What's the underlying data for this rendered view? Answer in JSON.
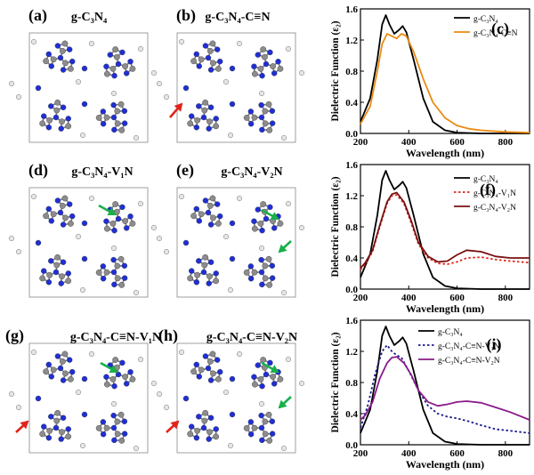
{
  "colors": {
    "carbon": "#8c8c8c",
    "nitrogen": "#1f2fd6",
    "hydrogen": "#e6e6e6",
    "bond": "#7a7a8a",
    "arrow_red": "#e0241c",
    "arrow_green": "#19b04a",
    "black": "#000000",
    "orange": "#ec8a12",
    "red_dot": "#e0241c",
    "dark_red": "#7a1010",
    "navy": "#1a1a8c",
    "purple": "#8a1a8a"
  },
  "panels": [
    {
      "tag": "(a)",
      "title": "g-C₃N₄"
    },
    {
      "tag": "(b)",
      "title": "g-C₃N₄-C≡N"
    },
    {
      "tag": "(d)",
      "title": "g-C₃N₄-V₁N"
    },
    {
      "tag": "(e)",
      "title": "g-C₃N₄-V₂N"
    },
    {
      "tag": "(g)",
      "title": "g-C₃N₄-C≡N-V₁N"
    },
    {
      "tag": "(h)",
      "title": "g-C₃N₄-C≡N-V₂N"
    }
  ],
  "chart_data": [
    {
      "type": "line",
      "panel_tag": "(c)",
      "xlabel": "Wavelength (nm)",
      "ylabel": "Dielectric Function (ε₂)",
      "xlim": [
        200,
        900
      ],
      "ylim": [
        0,
        1.6
      ],
      "xticks": [
        200,
        400,
        600,
        800
      ],
      "yticks": [
        0.0,
        0.4,
        0.8,
        1.2,
        1.6
      ],
      "legend_position": "top-right",
      "series": [
        {
          "name": "g-C₃N₄",
          "color": "#000000",
          "style": "solid",
          "x": [
            200,
            240,
            270,
            290,
            305,
            320,
            340,
            360,
            375,
            390,
            420,
            460,
            500,
            550,
            600,
            700,
            800,
            900
          ],
          "y": [
            0.15,
            0.45,
            0.95,
            1.4,
            1.52,
            1.4,
            1.28,
            1.33,
            1.38,
            1.3,
            0.95,
            0.45,
            0.15,
            0.04,
            0.01,
            0,
            0,
            0
          ]
        },
        {
          "name": "g-C₃N₄-C≡N",
          "color": "#ec8a12",
          "style": "solid",
          "x": [
            200,
            240,
            270,
            290,
            310,
            330,
            350,
            370,
            390,
            420,
            460,
            500,
            550,
            600,
            650,
            700,
            800,
            900
          ],
          "y": [
            0.12,
            0.35,
            0.8,
            1.15,
            1.28,
            1.25,
            1.22,
            1.28,
            1.25,
            1.05,
            0.7,
            0.4,
            0.2,
            0.1,
            0.06,
            0.04,
            0.02,
            0.01
          ]
        }
      ]
    },
    {
      "type": "line",
      "panel_tag": "(f)",
      "xlabel": "Wavelength (nm)",
      "ylabel": "Dielectric Function (ε₂)",
      "xlim": [
        200,
        900
      ],
      "ylim": [
        0,
        1.6
      ],
      "xticks": [
        200,
        400,
        600,
        800
      ],
      "yticks": [
        0.0,
        0.4,
        0.8,
        1.2,
        1.6
      ],
      "legend_position": "top-right",
      "series": [
        {
          "name": "g-C₃N₄",
          "color": "#000000",
          "style": "solid",
          "x": [
            200,
            240,
            270,
            290,
            305,
            320,
            340,
            360,
            375,
            390,
            420,
            460,
            500,
            550,
            600,
            700,
            800,
            900
          ],
          "y": [
            0.15,
            0.45,
            0.95,
            1.4,
            1.52,
            1.4,
            1.28,
            1.33,
            1.38,
            1.3,
            0.95,
            0.45,
            0.15,
            0.04,
            0.01,
            0,
            0,
            0
          ]
        },
        {
          "name": "g-C₃N₄-V₁N",
          "color": "#e0241c",
          "style": "dotted",
          "x": [
            200,
            220,
            250,
            280,
            310,
            330,
            350,
            380,
            410,
            440,
            480,
            520,
            560,
            600,
            640,
            700,
            760,
            820,
            900
          ],
          "y": [
            0.25,
            0.32,
            0.48,
            0.8,
            1.1,
            1.2,
            1.21,
            1.1,
            0.85,
            0.58,
            0.4,
            0.33,
            0.32,
            0.35,
            0.4,
            0.41,
            0.38,
            0.36,
            0.34
          ]
        },
        {
          "name": "g-C₃N₄-V₂N",
          "color": "#7a1010",
          "style": "solid",
          "x": [
            200,
            220,
            250,
            280,
            310,
            330,
            350,
            380,
            410,
            440,
            480,
            520,
            560,
            600,
            640,
            700,
            760,
            820,
            900
          ],
          "y": [
            0.27,
            0.34,
            0.5,
            0.82,
            1.12,
            1.22,
            1.24,
            1.12,
            0.88,
            0.6,
            0.42,
            0.35,
            0.36,
            0.44,
            0.5,
            0.48,
            0.42,
            0.4,
            0.4
          ]
        }
      ]
    },
    {
      "type": "line",
      "panel_tag": "(i)",
      "xlabel": "Wavelength (nm)",
      "ylabel": "Dielectric Function (ε₂)",
      "xlim": [
        200,
        900
      ],
      "ylim": [
        0,
        1.6
      ],
      "xticks": [
        200,
        400,
        600,
        800
      ],
      "yticks": [
        0.0,
        0.4,
        0.8,
        1.2,
        1.6
      ],
      "legend_position": "top-right",
      "series": [
        {
          "name": "g-C₃N₄",
          "color": "#000000",
          "style": "solid",
          "x": [
            200,
            240,
            270,
            290,
            305,
            320,
            340,
            360,
            375,
            390,
            420,
            460,
            500,
            550,
            600,
            700,
            800,
            900
          ],
          "y": [
            0.15,
            0.45,
            0.95,
            1.4,
            1.52,
            1.4,
            1.28,
            1.33,
            1.38,
            1.3,
            0.95,
            0.45,
            0.15,
            0.04,
            0.01,
            0,
            0,
            0
          ]
        },
        {
          "name": "g-C₃N₄-C≡N-V₁N",
          "color": "#1a1a8c",
          "style": "dotted",
          "x": [
            200,
            230,
            260,
            290,
            310,
            330,
            350,
            370,
            400,
            440,
            480,
            520,
            560,
            600,
            650,
            700,
            760,
            820,
            900
          ],
          "y": [
            0.22,
            0.5,
            0.9,
            1.2,
            1.28,
            1.2,
            1.15,
            1.12,
            0.95,
            0.7,
            0.5,
            0.4,
            0.36,
            0.34,
            0.3,
            0.25,
            0.2,
            0.18,
            0.15
          ]
        },
        {
          "name": "g-C₃N₄-C≡N-V₂N",
          "color": "#8a1a8a",
          "style": "solid",
          "x": [
            200,
            220,
            250,
            280,
            310,
            330,
            350,
            380,
            410,
            440,
            480,
            520,
            560,
            600,
            640,
            700,
            760,
            820,
            900
          ],
          "y": [
            0.32,
            0.38,
            0.55,
            0.85,
            1.05,
            1.12,
            1.13,
            1.05,
            0.9,
            0.7,
            0.55,
            0.5,
            0.52,
            0.55,
            0.56,
            0.54,
            0.48,
            0.42,
            0.32
          ]
        }
      ]
    }
  ]
}
